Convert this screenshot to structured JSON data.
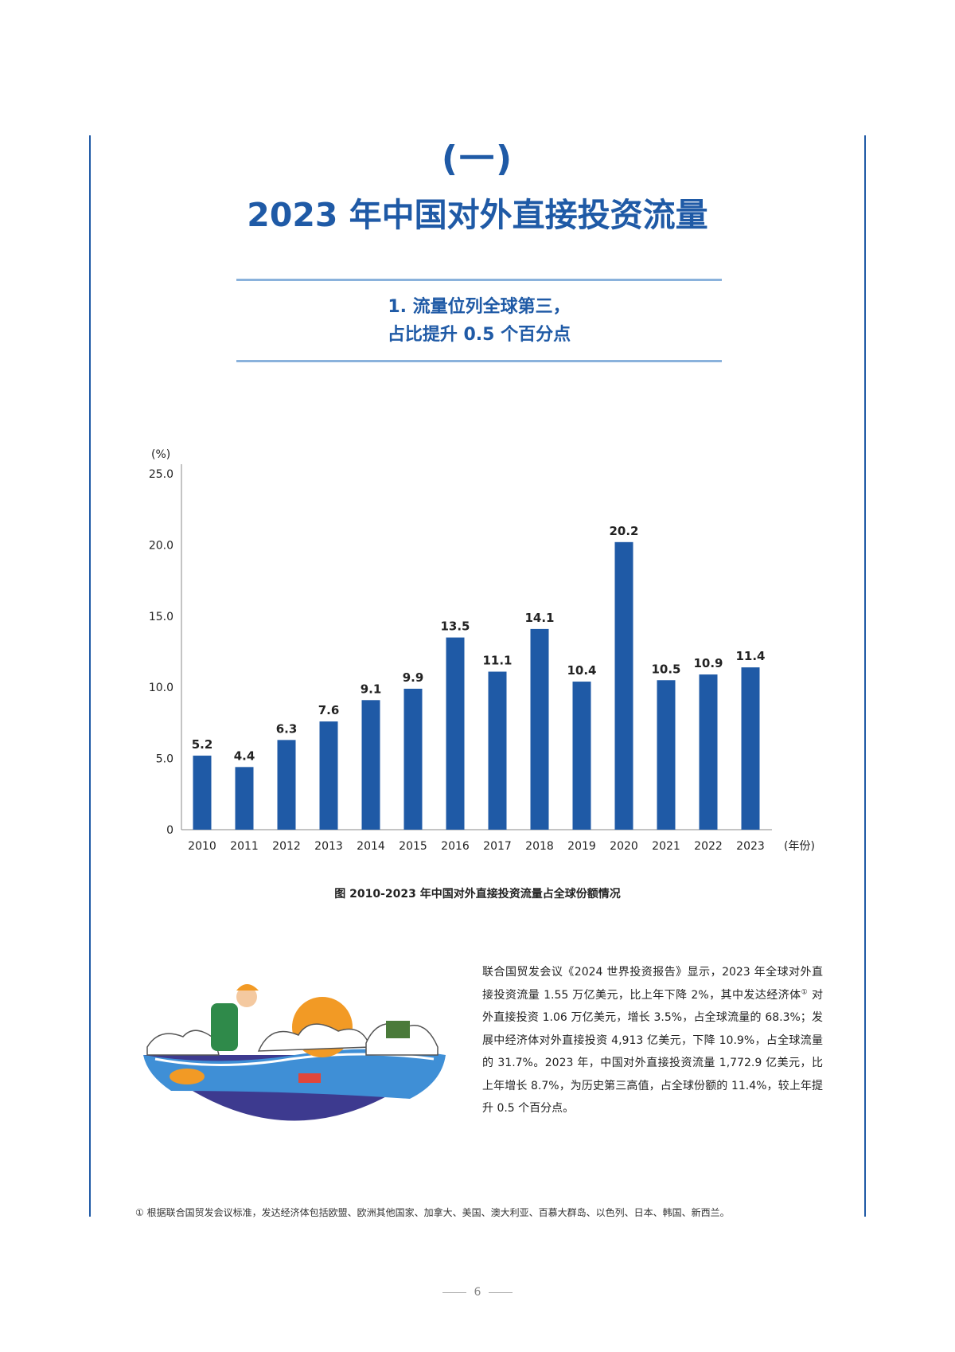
{
  "section": {
    "number": "(一)",
    "title": "2023 年中国对外直接投资流量"
  },
  "subsection": {
    "line1": "1. 流量位列全球第三，",
    "line2": "占比提升 0.5 个百分点"
  },
  "chart_data": {
    "type": "bar",
    "title": "",
    "ylabel": "(%)",
    "xlabel": "(年份)",
    "ylim": [
      0,
      25
    ],
    "yticks": [
      "0",
      "5.0",
      "10.0",
      "15.0",
      "20.0",
      "25.0"
    ],
    "ytick_values": [
      0,
      5,
      10,
      15,
      20,
      25
    ],
    "categories": [
      "2010",
      "2011",
      "2012",
      "2013",
      "2014",
      "2015",
      "2016",
      "2017",
      "2018",
      "2019",
      "2020",
      "2021",
      "2022",
      "2023"
    ],
    "values": [
      5.2,
      4.4,
      6.3,
      7.6,
      9.1,
      9.9,
      13.5,
      11.1,
      14.1,
      10.4,
      20.2,
      10.5,
      10.9,
      11.4
    ],
    "value_labels": [
      "5.2",
      "4.4",
      "6.3",
      "7.6",
      "9.1",
      "9.9",
      "13.5",
      "11.1",
      "14.1",
      "10.4",
      "20.2",
      "10.5",
      "10.9",
      "11.4"
    ],
    "grid": false,
    "bar_color": "#1f5aa6"
  },
  "figure_caption": "图 2010-2023 年中国对外直接投资流量占全球份额情况",
  "body": {
    "part1": "联合国贸发会议《2024 世界投资报告》显示，2023 年全球对外直接投资流量 1.55 万亿美元，比上年下降 2%，其中发达经济体",
    "footnote_mark": "①",
    "part2": " 对外直接投资 1.06 万亿美元，增长 3.5%，占全球流量的 68.3%；发展中经济体对外直接投资 4,913 亿美元，下降 10.9%，占全球流量的 31.7%。2023 年，中国对外直接投资流量 1,772.9 亿美元，比上年增长 8.7%，为历史第三高值，占全球份额的 11.4%，较上年提升 0.5 个百分点。"
  },
  "footnote": "① 根据联合国贸发会议标准，发达经济体包括欧盟、欧洲其他国家、加拿大、美国、澳大利亚、百慕大群岛、以色列、日本、韩国、新西兰。",
  "page_number": "6",
  "colors": {
    "accent": "#1f5aa6",
    "rule_light": "#8ab2dc"
  }
}
